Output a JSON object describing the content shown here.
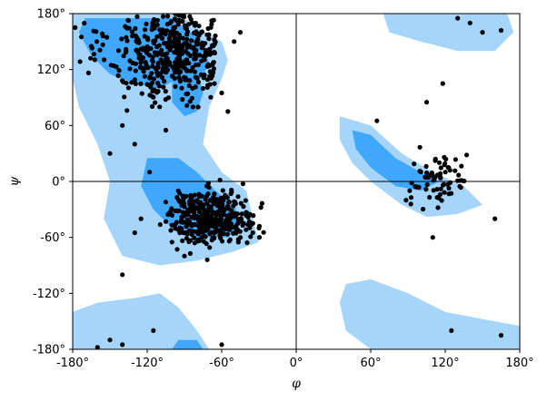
{
  "chart_data": {
    "type": "scatter",
    "subtype": "ramachandran",
    "xlabel": "φ",
    "ylabel": "ψ",
    "xlim": [
      -180,
      180
    ],
    "ylim": [
      -180,
      180
    ],
    "xticks": [
      -180,
      -120,
      -60,
      0,
      60,
      120,
      180
    ],
    "yticks": [
      -180,
      -120,
      -60,
      0,
      60,
      120,
      180
    ],
    "xtick_labels": [
      "-180°",
      "-120°",
      "-60°",
      "0°",
      "60°",
      "120°",
      "180°"
    ],
    "ytick_labels": [
      "-180°",
      "-120°",
      "-60°",
      "0°",
      "60°",
      "120°",
      "180°"
    ],
    "grid": false,
    "zero_lines": true,
    "colors": {
      "allowed_region": "#a6d5fb",
      "favored_region": "#3fa7fc",
      "points": "#000000",
      "zero_lines": "#000000"
    },
    "regions": [
      {
        "kind": "allowed",
        "name": "beta-sheet",
        "polygon": [
          [
            -180,
            180
          ],
          [
            -100,
            180
          ],
          [
            -90,
            175
          ],
          [
            -80,
            165
          ],
          [
            -60,
            150
          ],
          [
            -55,
            130
          ],
          [
            -60,
            110
          ],
          [
            -70,
            80
          ],
          [
            -75,
            40
          ],
          [
            -60,
            10
          ],
          [
            -40,
            -10
          ],
          [
            -35,
            -40
          ],
          [
            -30,
            -65
          ],
          [
            -50,
            -75
          ],
          [
            -80,
            -85
          ],
          [
            -110,
            -90
          ],
          [
            -140,
            -80
          ],
          [
            -155,
            -40
          ],
          [
            -150,
            0
          ],
          [
            -160,
            40
          ],
          [
            -175,
            80
          ],
          [
            -180,
            110
          ]
        ]
      },
      {
        "kind": "allowed",
        "name": "left-handed-helix",
        "polygon": [
          [
            35,
            70
          ],
          [
            60,
            60
          ],
          [
            85,
            30
          ],
          [
            110,
            10
          ],
          [
            135,
            -5
          ],
          [
            150,
            -25
          ],
          [
            130,
            -35
          ],
          [
            105,
            -38
          ],
          [
            85,
            -25
          ],
          [
            60,
            0
          ],
          [
            45,
            20
          ],
          [
            35,
            45
          ]
        ]
      },
      {
        "kind": "allowed",
        "name": "top-right",
        "polygon": [
          [
            70,
            180
          ],
          [
            170,
            180
          ],
          [
            175,
            160
          ],
          [
            160,
            140
          ],
          [
            130,
            140
          ],
          [
            100,
            150
          ],
          [
            75,
            160
          ]
        ]
      },
      {
        "kind": "allowed",
        "name": "bottom-right",
        "polygon": [
          [
            40,
            -110
          ],
          [
            60,
            -105
          ],
          [
            90,
            -120
          ],
          [
            120,
            -140
          ],
          [
            160,
            -150
          ],
          [
            180,
            -155
          ],
          [
            180,
            -180
          ],
          [
            60,
            -180
          ],
          [
            40,
            -160
          ],
          [
            35,
            -130
          ]
        ]
      },
      {
        "kind": "allowed",
        "name": "bottom-left",
        "polygon": [
          [
            -180,
            -140
          ],
          [
            -160,
            -130
          ],
          [
            -130,
            -125
          ],
          [
            -110,
            -120
          ],
          [
            -95,
            -135
          ],
          [
            -80,
            -160
          ],
          [
            -70,
            -180
          ],
          [
            -180,
            -180
          ]
        ]
      },
      {
        "kind": "favored",
        "name": "beta-core",
        "polygon": [
          [
            -170,
            175
          ],
          [
            -100,
            175
          ],
          [
            -90,
            165
          ],
          [
            -75,
            150
          ],
          [
            -70,
            125
          ],
          [
            -80,
            105
          ],
          [
            -95,
            110
          ],
          [
            -110,
            100
          ],
          [
            -130,
            105
          ],
          [
            -150,
            115
          ],
          [
            -165,
            135
          ],
          [
            -175,
            160
          ]
        ]
      },
      {
        "kind": "favored",
        "name": "beta-right-lobe",
        "polygon": [
          [
            -95,
            120
          ],
          [
            -80,
            120
          ],
          [
            -75,
            95
          ],
          [
            -80,
            75
          ],
          [
            -90,
            70
          ],
          [
            -100,
            85
          ],
          [
            -100,
            105
          ]
        ]
      },
      {
        "kind": "favored",
        "name": "alpha-core",
        "polygon": [
          [
            -120,
            25
          ],
          [
            -95,
            25
          ],
          [
            -80,
            10
          ],
          [
            -65,
            -10
          ],
          [
            -50,
            -25
          ],
          [
            -45,
            -45
          ],
          [
            -55,
            -60
          ],
          [
            -80,
            -60
          ],
          [
            -100,
            -50
          ],
          [
            -115,
            -30
          ],
          [
            -125,
            -5
          ]
        ]
      },
      {
        "kind": "favored",
        "name": "left-helix-core",
        "polygon": [
          [
            45,
            55
          ],
          [
            60,
            50
          ],
          [
            80,
            25
          ],
          [
            100,
            10
          ],
          [
            115,
            0
          ],
          [
            100,
            -10
          ],
          [
            80,
            -5
          ],
          [
            60,
            15
          ],
          [
            48,
            35
          ]
        ]
      },
      {
        "kind": "favored",
        "name": "bottom-spot",
        "polygon": [
          [
            -95,
            -170
          ],
          [
            -80,
            -170
          ],
          [
            -75,
            -180
          ],
          [
            -100,
            -180
          ]
        ]
      }
    ],
    "point_clusters": [
      {
        "region": "beta",
        "count": 430,
        "center": [
          -95,
          140
        ],
        "spread": [
          28,
          28
        ],
        "xrange": [
          -175,
          -65
        ],
        "yrange": [
          70,
          180
        ]
      },
      {
        "region": "alpha-right-helix",
        "count": 360,
        "center": [
          -68,
          -38
        ],
        "spread": [
          18,
          14
        ],
        "xrange": [
          -120,
          -25
        ],
        "yrange": [
          -85,
          25
        ]
      },
      {
        "region": "left-handed-helix",
        "count": 70,
        "center": [
          115,
          0
        ],
        "spread": [
          12,
          15
        ],
        "xrange": [
          85,
          140
        ],
        "yrange": [
          -55,
          105
        ]
      }
    ],
    "extra_points": [
      [
        -110,
        80
      ],
      [
        -140,
        60
      ],
      [
        -130,
        40
      ],
      [
        -118,
        10
      ],
      [
        -95,
        -10
      ],
      [
        -150,
        30
      ],
      [
        -125,
        -40
      ],
      [
        -100,
        -65
      ],
      [
        -55,
        75
      ],
      [
        -60,
        95
      ],
      [
        -50,
        150
      ],
      [
        -45,
        160
      ],
      [
        118,
        105
      ],
      [
        105,
        85
      ],
      [
        65,
        65
      ],
      [
        130,
        175
      ],
      [
        140,
        170
      ],
      [
        150,
        160
      ],
      [
        165,
        162
      ],
      [
        160,
        -40
      ],
      [
        110,
        -60
      ],
      [
        -150,
        -170
      ],
      [
        -140,
        -175
      ],
      [
        -160,
        -178
      ],
      [
        -115,
        -160
      ],
      [
        -60,
        -175
      ],
      [
        125,
        -160
      ],
      [
        165,
        -165
      ],
      [
        -173,
        155
      ],
      [
        -165,
        145
      ],
      [
        -178,
        165
      ],
      [
        -105,
        55
      ],
      [
        -130,
        -55
      ],
      [
        -140,
        -100
      ],
      [
        -90,
        -80
      ],
      [
        -45,
        -60
      ],
      [
        -35,
        -55
      ],
      [
        -30,
        -50
      ]
    ]
  }
}
